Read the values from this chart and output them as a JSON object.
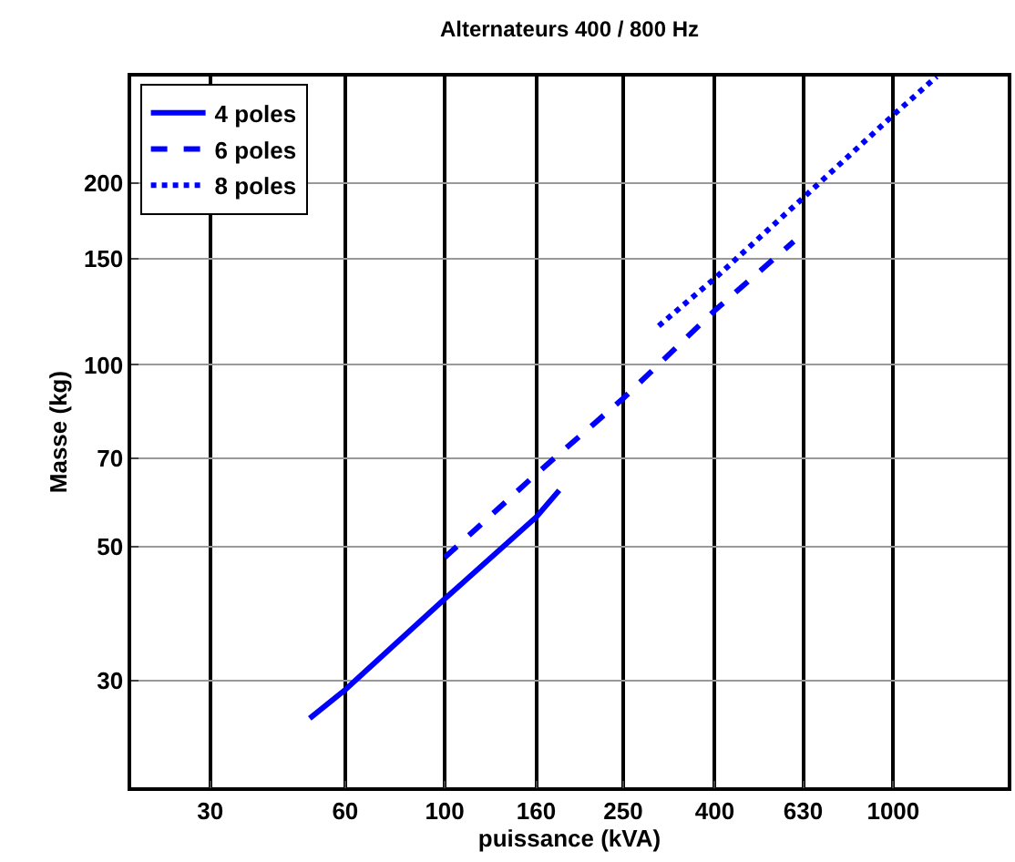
{
  "chart_data": {
    "type": "line",
    "title": "Alternateurs 400 / 800 Hz",
    "xlabel": "puissance (kVA)",
    "ylabel": "Masse (kg)",
    "log": "xy",
    "grid": true,
    "legend": "top left",
    "xlim": [
      20,
      1800
    ],
    "xticks": [
      30,
      60,
      100,
      160,
      250,
      400,
      630,
      1000
    ],
    "ylim": [
      20,
      300
    ],
    "yticks": [
      30,
      50,
      70,
      100,
      150,
      200
    ],
    "series": [
      {
        "name": "4 poles",
        "color": "#0000ff",
        "line_style": "solid",
        "x": [
          50,
          60,
          100,
          160,
          180
        ],
        "values": [
          26,
          29,
          41,
          56,
          62
        ]
      },
      {
        "name": "6 poles",
        "color": "#0000ff",
        "line_style": "dashed",
        "x": [
          100,
          160,
          250,
          400,
          600
        ],
        "values": [
          48,
          66,
          88,
          123,
          160
        ]
      },
      {
        "name": "8 poles",
        "color": "#0000ff",
        "line_style": "dotted",
        "x": [
          300,
          400,
          630,
          1000,
          1250
        ],
        "values": [
          116,
          139,
          189,
          259,
          300
        ]
      }
    ]
  }
}
